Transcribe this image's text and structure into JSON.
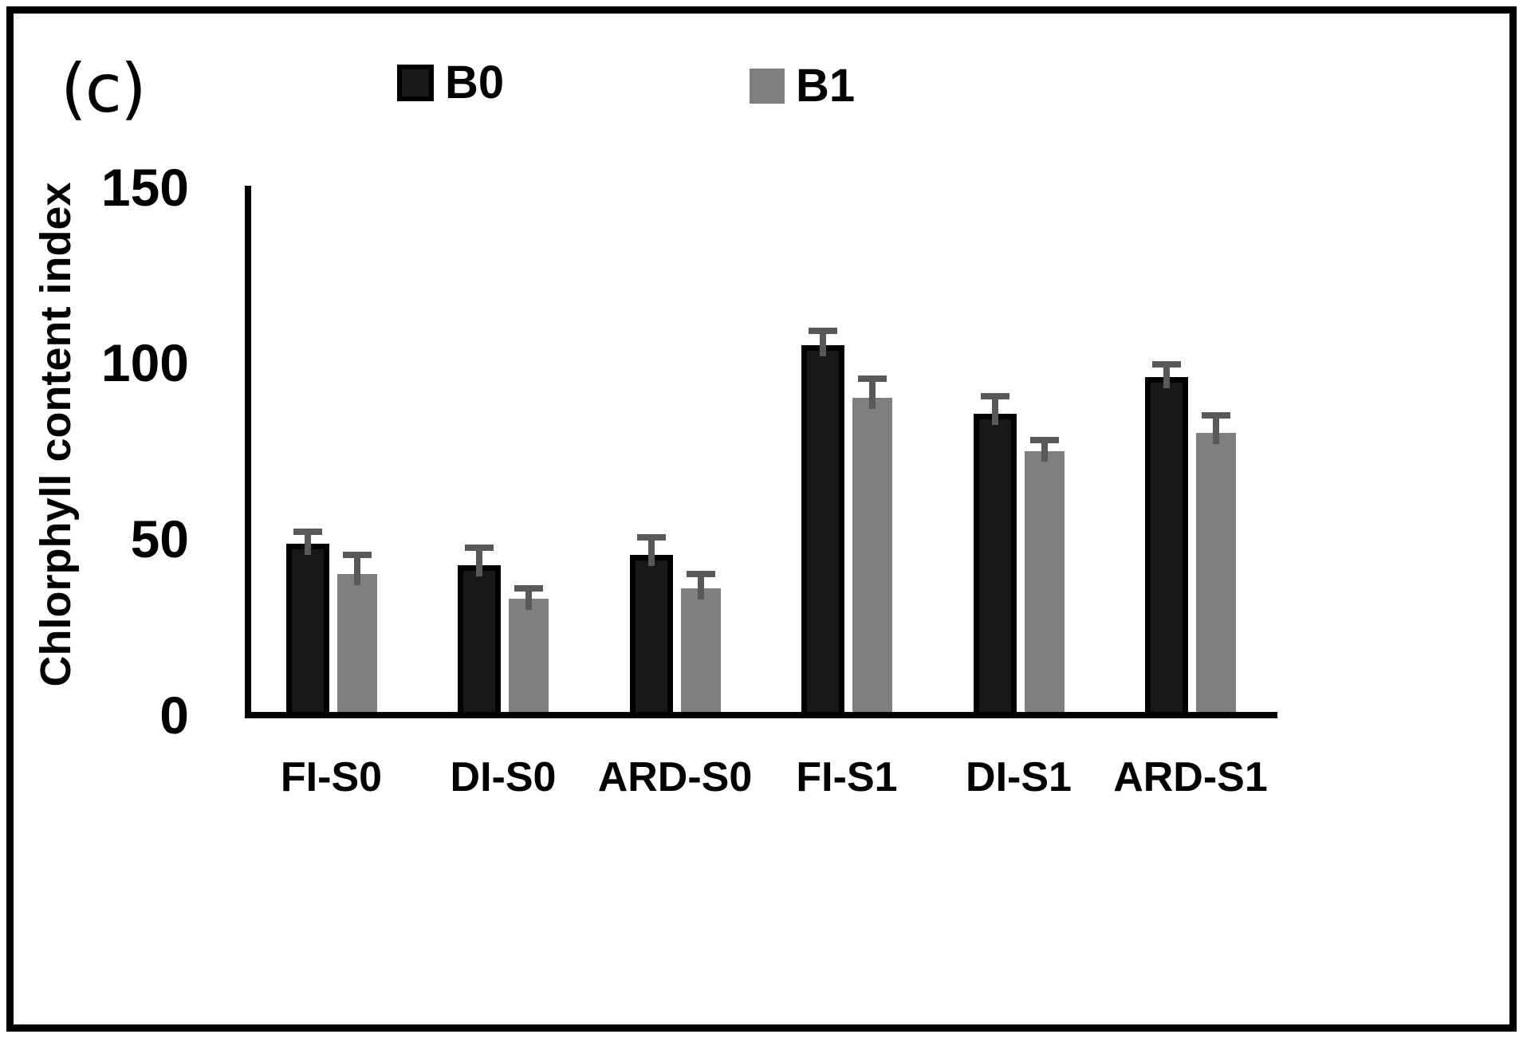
{
  "panel_label": "(c)",
  "chart_data": {
    "type": "bar",
    "title": "",
    "categories": [
      "FI-S0",
      "DI-S0",
      "ARD-S0",
      "FI-S1",
      "DI-S1",
      "ARD-S1"
    ],
    "series": [
      {
        "name": "B0",
        "color": "#181818",
        "border_color": "#000000",
        "values": [
          48.5,
          42.5,
          45.5,
          105,
          85.5,
          96
        ],
        "errors_plus": [
          3.5,
          5,
          5,
          4,
          5,
          3.5
        ]
      },
      {
        "name": "B1",
        "color": "#7f7f7f",
        "border_color": "none",
        "values": [
          40,
          33,
          36,
          90,
          75,
          80
        ],
        "errors_plus": [
          5.5,
          3,
          4,
          5.5,
          3,
          5
        ]
      }
    ],
    "xlabel": "",
    "ylabel": "Chlorphyll content index",
    "ylim": [
      0,
      150
    ],
    "yticks": [
      0,
      50,
      100,
      150
    ],
    "grid": false,
    "legend_position": "top",
    "error_bar_color": "#595959",
    "bar_orientation": "vertical"
  }
}
